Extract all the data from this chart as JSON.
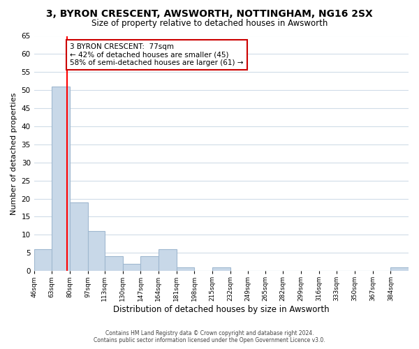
{
  "title": "3, BYRON CRESCENT, AWSWORTH, NOTTINGHAM, NG16 2SX",
  "subtitle": "Size of property relative to detached houses in Awsworth",
  "xlabel": "Distribution of detached houses by size in Awsworth",
  "ylabel": "Number of detached properties",
  "bar_values": [
    6,
    51,
    19,
    11,
    4,
    2,
    4,
    6,
    1,
    0,
    1,
    0,
    0,
    0,
    0,
    0,
    0,
    0,
    0,
    0,
    1
  ],
  "bin_edges": [
    46,
    63,
    80,
    97,
    113,
    130,
    147,
    164,
    181,
    198,
    215,
    232,
    249,
    265,
    282,
    299,
    316,
    333,
    350,
    367,
    384
  ],
  "x_tick_labels": [
    "46sqm",
    "63sqm",
    "80sqm",
    "97sqm",
    "113sqm",
    "130sqm",
    "147sqm",
    "164sqm",
    "181sqm",
    "198sqm",
    "215sqm",
    "232sqm",
    "249sqm",
    "265sqm",
    "282sqm",
    "299sqm",
    "316sqm",
    "333sqm",
    "350sqm",
    "367sqm",
    "384sqm"
  ],
  "bar_color": "#c8d8e8",
  "bar_edge_color": "#a0b8d0",
  "red_line_x": 77,
  "ylim": [
    0,
    65
  ],
  "yticks": [
    0,
    5,
    10,
    15,
    20,
    25,
    30,
    35,
    40,
    45,
    50,
    55,
    60,
    65
  ],
  "annotation_title": "3 BYRON CRESCENT:  77sqm",
  "annotation_line1": "← 42% of detached houses are smaller (45)",
  "annotation_line2": "58% of semi-detached houses are larger (61) →",
  "annotation_box_color": "#ffffff",
  "annotation_box_edge_color": "#cc0000",
  "footer_line1": "Contains HM Land Registry data © Crown copyright and database right 2024.",
  "footer_line2": "Contains public sector information licensed under the Open Government Licence v3.0.",
  "background_color": "#ffffff",
  "grid_color": "#d0dce8"
}
